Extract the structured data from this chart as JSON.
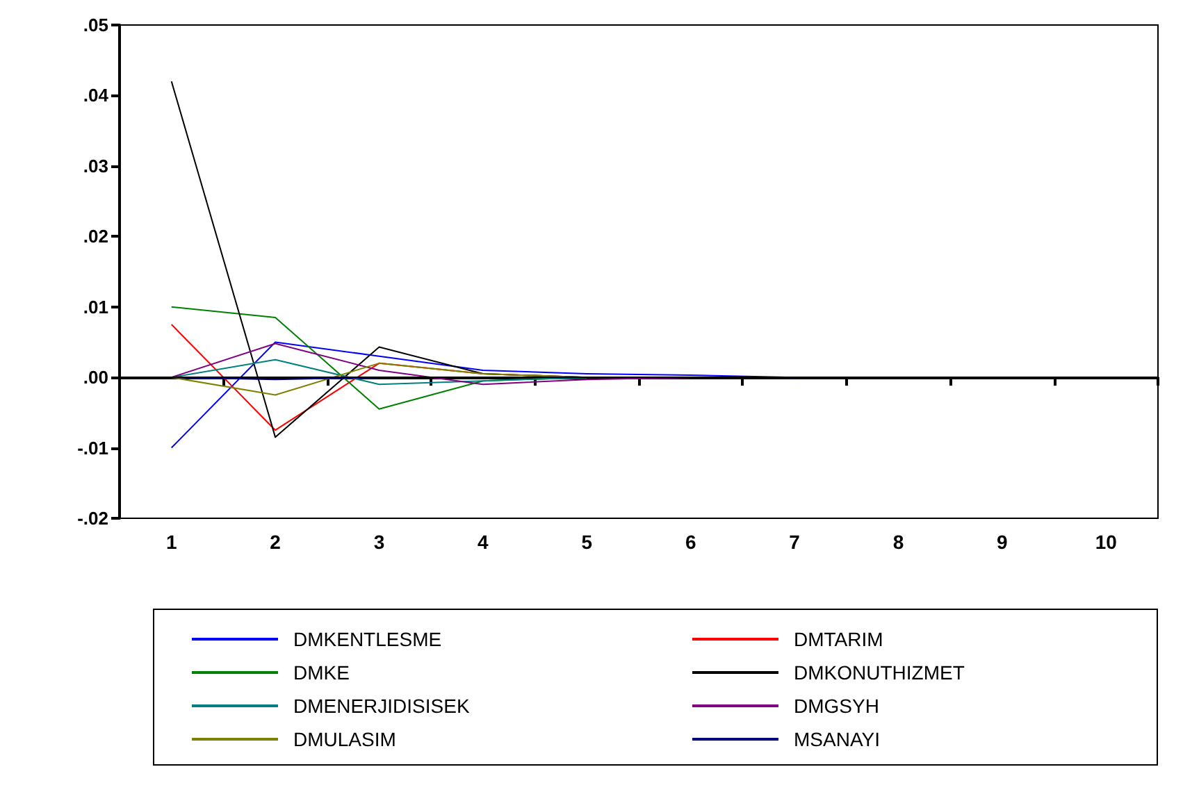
{
  "chart_data": {
    "type": "line",
    "categories": [
      "1",
      "2",
      "3",
      "4",
      "5",
      "6",
      "7",
      "8",
      "9",
      "10"
    ],
    "ylim": [
      -0.02,
      0.05
    ],
    "yticks": [
      {
        "value": -0.02,
        "label": "-.02"
      },
      {
        "value": -0.01,
        "label": "-.01"
      },
      {
        "value": 0,
        "label": ".00"
      },
      {
        "value": 0.01,
        "label": ".01"
      },
      {
        "value": 0.02,
        "label": ".02"
      },
      {
        "value": 0.03,
        "label": ".03"
      },
      {
        "value": 0.04,
        "label": ".04"
      },
      {
        "value": 0.05,
        "label": ".05"
      }
    ],
    "grid": false,
    "legend": "bottom",
    "line_style": "solid",
    "marker": "none",
    "ref_lines": [
      {
        "axis": "y",
        "value": 0,
        "color": "#000000"
      }
    ],
    "series": [
      {
        "name": "DMKENTLESME",
        "color": "#0000ff",
        "values": [
          -0.01,
          0.005,
          0.003,
          0.001,
          0.0005,
          0.0003,
          0,
          null,
          null,
          null
        ]
      },
      {
        "name": "DMTARIM",
        "color": "#ff0000",
        "values": [
          0.0075,
          -0.0075,
          0.002,
          0.0005,
          0,
          null,
          null,
          null,
          null,
          null
        ]
      },
      {
        "name": "DMKE",
        "color": "#008000",
        "values": [
          0.01,
          0.0085,
          -0.0045,
          -0.0005,
          0,
          null,
          null,
          null,
          null,
          null
        ]
      },
      {
        "name": "DMKONUTHIZMET",
        "color": "#000000",
        "values": [
          0.042,
          -0.0085,
          0.0043,
          0.0005,
          0,
          null,
          null,
          null,
          null,
          null
        ]
      },
      {
        "name": "DMENERJIDISISEK",
        "color": "#008080",
        "values": [
          0,
          0.0025,
          -0.001,
          -0.0005,
          0,
          null,
          null,
          null,
          null,
          null
        ]
      },
      {
        "name": "DMGSYH",
        "color": "#800080",
        "values": [
          0,
          0.0048,
          0.001,
          -0.001,
          -0.0003,
          0,
          null,
          null,
          null,
          null
        ]
      },
      {
        "name": "DMULASIM",
        "color": "#808000",
        "values": [
          0,
          -0.0025,
          0.002,
          0.0005,
          0,
          null,
          null,
          null,
          null,
          null
        ]
      },
      {
        "name": "MSANAYI",
        "color": "#000080",
        "values": [
          0,
          -0.0003,
          0,
          null,
          null,
          null,
          null,
          null,
          null,
          null
        ]
      }
    ]
  }
}
